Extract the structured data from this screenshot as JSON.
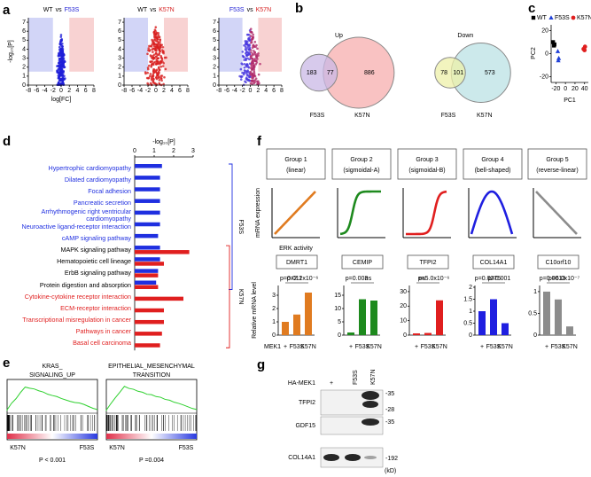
{
  "panel_labels": [
    "a",
    "b",
    "c",
    "d",
    "e",
    "f",
    "g"
  ],
  "a": {
    "ylabel": "-log₁₀[P]",
    "xlabel": "log[FC]",
    "xlim": [
      -8,
      8
    ],
    "ylim": [
      0,
      7.5
    ],
    "xticks": [
      -8,
      -6,
      -4,
      -2,
      0,
      2,
      4,
      6,
      8
    ],
    "yticks": [
      0,
      1,
      2,
      3,
      4,
      5,
      6,
      7
    ],
    "plots": [
      {
        "title": [
          "WT",
          "vs",
          "F53S"
        ],
        "title_colors": [
          "#000000",
          "#000000",
          "#2323d6"
        ],
        "dot_color": "#1f1fd8"
      },
      {
        "title": [
          "WT",
          "vs",
          "K57N"
        ],
        "title_colors": [
          "#000000",
          "#000000",
          "#d61f1f"
        ],
        "dot_color": "#d81f1f"
      },
      {
        "title": [
          "F53S",
          "vs",
          "K57N"
        ],
        "title_colors": [
          "#2323d6",
          "#000000",
          "#d61f1f"
        ],
        "dot_color": "#6a2aa8"
      }
    ]
  },
  "b": {
    "left_label": "F53S",
    "right_label": "K57N",
    "left_label_color": "#2323d6",
    "right_label_color": "#d61f1f",
    "sets": [
      {
        "title": "Up",
        "left": 183,
        "overlap": 77,
        "right": 886,
        "left_color": "#c9b8e6",
        "right_color": "#f7b3b3"
      },
      {
        "title": "Down",
        "left": 78,
        "overlap": 101,
        "right": 573,
        "left_color": "#eef0a8",
        "right_color": "#bfe4e6"
      }
    ]
  },
  "c": {
    "type": "scatter",
    "xlabel": "PC1",
    "ylabel": "PC2",
    "xlim": [
      -30,
      48
    ],
    "ylim": [
      -25,
      25
    ],
    "xticks": [
      -20,
      0,
      20,
      40
    ],
    "yticks": [
      -20,
      0,
      20
    ],
    "series": [
      {
        "name": "WT",
        "color": "#000000",
        "marker": "square",
        "x": [
          -26,
          -23,
          -24
        ],
        "y": [
          10,
          8,
          7
        ]
      },
      {
        "name": "F53S",
        "color": "#1f3fd8",
        "marker": "triangle",
        "x": [
          -16,
          -14,
          -15
        ],
        "y": [
          2,
          -4,
          -6
        ]
      },
      {
        "name": "K57N",
        "color": "#e01f1f",
        "marker": "circle",
        "x": [
          38,
          41,
          40
        ],
        "y": [
          4,
          6,
          3
        ]
      }
    ]
  },
  "d": {
    "type": "bar",
    "axis_title": "-log₁₀[P]",
    "xlim": [
      0,
      3
    ],
    "xticks": [
      0,
      1,
      2,
      3
    ],
    "categories": [
      "Hypertrophic cardiomyopathy",
      "Dilated cardiomyopathy",
      "Focal adhesion",
      "Pancreatic secretion",
      "Arrhythmogenic right ventricular cardiomyopathy",
      "Neuroactive ligand-receptor interaction",
      "cAMP signaling pathway",
      "MAPK signaling pathway",
      "Hematopoietic cell lineage",
      "ErbB signaling pathway",
      "Protein digestion and absorption",
      "Cytokine-cytokine receptor interaction",
      "ECM-receptor interaction",
      "Transcriptional misregulation in cancer",
      "Pathways in cancer",
      "Basal cell carcinoma"
    ],
    "label_colors": [
      "#1f2fe0",
      "#1f2fe0",
      "#1f2fe0",
      "#1f2fe0",
      "#1f2fe0",
      "#1f2fe0",
      "#1f2fe0",
      "#000000",
      "#000000",
      "#000000",
      "#000000",
      "#e01f1f",
      "#e01f1f",
      "#e01f1f",
      "#e01f1f",
      "#e01f1f"
    ],
    "series": [
      {
        "name": "F53S",
        "color": "#1f2fe0",
        "values": [
          1.4,
          1.3,
          1.3,
          1.3,
          1.3,
          1.3,
          1.2,
          1.3,
          1.3,
          1.2,
          1.1,
          null,
          null,
          null,
          null,
          null
        ]
      },
      {
        "name": "K57N",
        "color": "#e01f1f",
        "values": [
          null,
          null,
          null,
          null,
          null,
          null,
          null,
          2.8,
          1.5,
          1.2,
          1.2,
          2.5,
          1.5,
          1.5,
          1.4,
          1.3
        ]
      }
    ]
  },
  "e": {
    "plots": [
      {
        "title": [
          "KRAS_",
          "SIGNALING_UP"
        ],
        "left_label": "K57N",
        "right_label": "F53S",
        "p_label": "P < 0.001"
      },
      {
        "title": [
          "EPITHELIAL_MESENCHYMAL",
          "TRANSITION"
        ],
        "left_label": "K57N",
        "right_label": "F53S",
        "p_label": "P =0.004"
      }
    ]
  },
  "f": {
    "ylabel_top": "mRNA expression",
    "xlabel_top": "ERK activity",
    "ylabel": "Relative mRNA level",
    "condition_title": "MEK1",
    "conditions": [
      "+",
      "F53S",
      "K57N"
    ],
    "groups": [
      {
        "title": "Group 1",
        "subtitle": "(linear)",
        "color": "#e07b20"
      },
      {
        "title": "Group 2",
        "subtitle": "(sigmoidal-A)",
        "color": "#1e8a1e"
      },
      {
        "title": "Group 3",
        "subtitle": "(sigmoidal-B)",
        "color": "#e01f1f"
      },
      {
        "title": "Group 4",
        "subtitle": "(bell-shaped)",
        "color": "#1f1fe0"
      },
      {
        "title": "Group 5",
        "subtitle": "(reverse-linear)",
        "color": "#8c8c8c"
      }
    ],
    "genes": [
      {
        "name": "DMRT1",
        "color": "#e07b20",
        "values": [
          1.0,
          1.55,
          3.2
        ],
        "ylim": [
          0,
          3.6
        ],
        "yticks": [
          0,
          1,
          2,
          3
        ],
        "p_labels": [
          "p=0.011",
          "p=2.2x10⁻⁶"
        ]
      },
      {
        "name": "CEMIP",
        "color": "#1e8a1e",
        "values": [
          1.0,
          13.5,
          13
        ],
        "ylim": [
          0,
          18
        ],
        "yticks": [
          0,
          5,
          10,
          15
        ],
        "p_labels": [
          "p=0.003",
          "ns"
        ]
      },
      {
        "name": "TFPI2",
        "color": "#e01f1f",
        "values": [
          1.2,
          1.5,
          24
        ],
        "ylim": [
          0,
          33
        ],
        "yticks": [
          0,
          10,
          20,
          30
        ],
        "p_labels": [
          "ns",
          "p=5.0x10⁻⁶"
        ]
      },
      {
        "name": "COL14A1",
        "color": "#1f1fe0",
        "values": [
          1.0,
          1.5,
          0.5
        ],
        "ylim": [
          0,
          2
        ],
        "yticks": [
          0,
          0.5,
          1,
          1.5,
          2
        ],
        "p_labels": [
          "p=0.0275",
          "p=0.001"
        ]
      },
      {
        "name": "C10orf10",
        "color": "#8c8c8c",
        "values": [
          1.0,
          0.82,
          0.2
        ],
        "ylim": [
          0,
          1.1
        ],
        "yticks": [
          0,
          0.5,
          1
        ],
        "p_labels": [
          "p=0.0013",
          "p=6.0x10⁻⁷"
        ]
      }
    ]
  },
  "g": {
    "treatment": "HA-MEK1",
    "lanes": [
      "+",
      "F53S",
      "K57N"
    ],
    "rows": [
      {
        "name": "TFPI2",
        "markers": [
          "-35",
          "-28"
        ]
      },
      {
        "name": "GDF15",
        "markers": [
          "-35"
        ]
      },
      {
        "name": "COL14A1",
        "markers": [
          "-192"
        ]
      }
    ],
    "unit": "(kD)"
  }
}
